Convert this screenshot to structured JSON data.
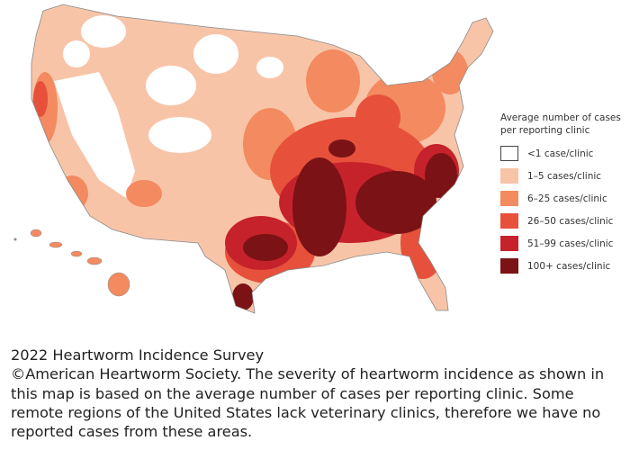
{
  "legend": {
    "title": "Average number of cases per reporting clinic",
    "items": [
      {
        "label": "<1 case/clinic",
        "color": "#ffffff"
      },
      {
        "label": "1–5 cases/clinic",
        "color": "#f8c4a8"
      },
      {
        "label": "6–25 cases/clinic",
        "color": "#f38a60"
      },
      {
        "label": "26–50 cases/clinic",
        "color": "#e7513b"
      },
      {
        "label": "51–99 cases/clinic",
        "color": "#c6222b"
      },
      {
        "label": "100+ cases/clinic",
        "color": "#7b1215"
      }
    ]
  },
  "caption": {
    "title": "2022 Heartworm Incidence Survey",
    "body": "©American Heartworm Society. The severity of heartworm incidence as shown in this map is based on the average number of cases per reporting clinic. Some remote regions of the United States lack veterinary clinics, therefore we have no reported cases from these areas."
  }
}
